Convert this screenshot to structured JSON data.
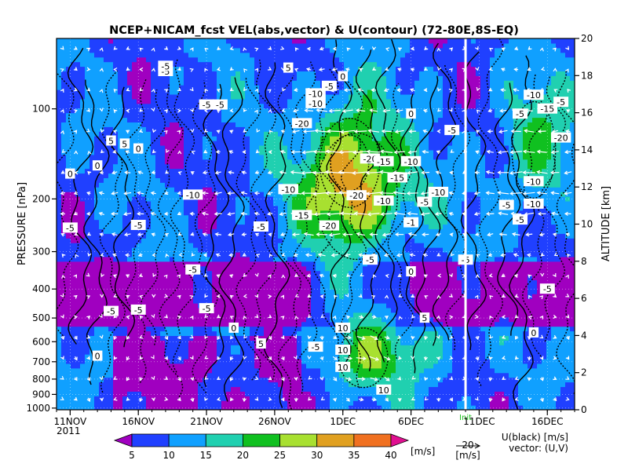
{
  "chart_data": {
    "type": "heatmap",
    "title": "NCEP+NICAM_fcst VEL(abs,vector) & U(contour)   (72-80E,8S-EQ)",
    "ylabel": "PRESSURE [nPa]",
    "y2label": "ALTITUDE [km]",
    "xlim": [
      "2011-11-10",
      "2011-12-18"
    ],
    "ylim_pressure": [
      1000,
      60
    ],
    "y2lim_altitude": [
      0,
      20
    ],
    "x_ticks": [
      {
        "date": "2011-11-11",
        "label": "11NOV"
      },
      {
        "date": "2011-11-16",
        "label": "16NOV"
      },
      {
        "date": "2011-11-21",
        "label": "21NOV"
      },
      {
        "date": "2011-11-26",
        "label": "26NOV"
      },
      {
        "date": "2011-12-01",
        "label": "1DEC"
      },
      {
        "date": "2011-12-06",
        "label": "6DEC"
      },
      {
        "date": "2011-12-11",
        "label": "11DEC"
      },
      {
        "date": "2011-12-16",
        "label": "16DEC"
      }
    ],
    "x_year_label": "2011",
    "y_ticks_pressure": [
      100,
      200,
      300,
      400,
      500,
      600,
      700,
      800,
      900,
      1000
    ],
    "y_ticks_altitude": [
      0,
      2,
      4,
      6,
      8,
      10,
      12,
      14,
      16,
      18,
      20
    ],
    "init_date": "2011-12-10",
    "init_label": "Init",
    "grid": true,
    "colorbar": {
      "levels": [
        5,
        10,
        15,
        20,
        25,
        30,
        35,
        40
      ],
      "colors": [
        "#a000c0",
        "#2040ff",
        "#10a0ff",
        "#20d0b0",
        "#10c020",
        "#a8e030",
        "#e0a020",
        "#f07020",
        "#e01090"
      ],
      "unit": "[m/s]"
    },
    "vector_reference": {
      "value": "20",
      "unit": "[m/s]"
    },
    "legend_note_1": "U(black) [m/s]",
    "legend_note_2": "vector: (U,V)",
    "contour_labels": [
      {
        "date": "2011-11-18",
        "p": 75,
        "text": "-5"
      },
      {
        "date": "2011-11-21",
        "p": 97,
        "text": "-5"
      },
      {
        "date": "2011-11-22",
        "p": 97,
        "text": "-5"
      },
      {
        "date": "2011-11-14",
        "p": 128,
        "text": "5"
      },
      {
        "date": "2011-11-15",
        "p": 131,
        "text": "5"
      },
      {
        "date": "2011-11-16",
        "p": 136,
        "text": "0"
      },
      {
        "date": "2011-11-13",
        "p": 155,
        "text": "0"
      },
      {
        "date": "2011-11-11",
        "p": 165,
        "text": "0"
      },
      {
        "date": "2011-11-27",
        "p": 73,
        "text": "5"
      },
      {
        "date": "2011-12-01",
        "p": 78,
        "text": "0"
      },
      {
        "date": "2011-11-30",
        "p": 84,
        "text": "-5"
      },
      {
        "date": "2011-11-29",
        "p": 89,
        "text": "-10"
      },
      {
        "date": "2011-11-29",
        "p": 96,
        "text": "-10"
      },
      {
        "date": "2011-11-28",
        "p": 112,
        "text": "-20"
      },
      {
        "date": "2011-12-03",
        "p": 147,
        "text": "-20"
      },
      {
        "date": "2011-12-04",
        "p": 150,
        "text": "-15"
      },
      {
        "date": "2011-12-06",
        "p": 150,
        "text": "-10"
      },
      {
        "date": "2011-12-05",
        "p": 170,
        "text": "-15"
      },
      {
        "date": "2011-11-27",
        "p": 186,
        "text": "-10"
      },
      {
        "date": "2011-12-02",
        "p": 195,
        "text": "-20"
      },
      {
        "date": "2011-12-04",
        "p": 203,
        "text": "-10"
      },
      {
        "date": "2011-11-28",
        "p": 227,
        "text": "-15"
      },
      {
        "date": "2011-11-30",
        "p": 246,
        "text": "-20"
      },
      {
        "date": "2011-12-06",
        "p": 240,
        "text": "-1"
      },
      {
        "date": "2011-12-07",
        "p": 205,
        "text": "-5"
      },
      {
        "date": "2011-12-08",
        "p": 190,
        "text": "-10"
      },
      {
        "date": "2011-12-06",
        "p": 104,
        "text": "0"
      },
      {
        "date": "2011-12-09",
        "p": 118,
        "text": "-5"
      },
      {
        "date": "2011-11-20",
        "p": 194,
        "text": "-10"
      },
      {
        "date": "2011-11-11",
        "p": 250,
        "text": "-5"
      },
      {
        "date": "2011-11-16",
        "p": 245,
        "text": "-5"
      },
      {
        "date": "2011-11-25",
        "p": 248,
        "text": "-5"
      },
      {
        "date": "2011-12-03",
        "p": 320,
        "text": "-5"
      },
      {
        "date": "2011-12-06",
        "p": 350,
        "text": "0"
      },
      {
        "date": "2011-11-20",
        "p": 345,
        "text": "-5"
      },
      {
        "date": "2011-11-14",
        "p": 475,
        "text": "-5"
      },
      {
        "date": "2011-11-16",
        "p": 470,
        "text": "-5"
      },
      {
        "date": "2011-11-21",
        "p": 465,
        "text": "-5"
      },
      {
        "date": "2011-11-23",
        "p": 540,
        "text": "0"
      },
      {
        "date": "2011-11-25",
        "p": 610,
        "text": "5"
      },
      {
        "date": "2011-11-29",
        "p": 625,
        "text": "-5"
      },
      {
        "date": "2011-12-01",
        "p": 540,
        "text": "10"
      },
      {
        "date": "2011-12-01",
        "p": 640,
        "text": "10"
      },
      {
        "date": "2011-12-01",
        "p": 730,
        "text": "10"
      },
      {
        "date": "2011-12-04",
        "p": 870,
        "text": "10"
      },
      {
        "date": "2011-11-13",
        "p": 670,
        "text": "0"
      },
      {
        "date": "2011-12-14",
        "p": 104,
        "text": "-5"
      },
      {
        "date": "2011-12-15",
        "p": 90,
        "text": "-10"
      },
      {
        "date": "2011-12-16",
        "p": 100,
        "text": "-15"
      },
      {
        "date": "2011-12-17",
        "p": 95,
        "text": "-5"
      },
      {
        "date": "2011-12-17",
        "p": 125,
        "text": "-20"
      },
      {
        "date": "2011-12-15",
        "p": 175,
        "text": "-10"
      },
      {
        "date": "2011-12-15",
        "p": 208,
        "text": "-10"
      },
      {
        "date": "2011-12-13",
        "p": 210,
        "text": "-5"
      },
      {
        "date": "2011-12-14",
        "p": 235,
        "text": "-5"
      },
      {
        "date": "2011-12-10",
        "p": 320,
        "text": "-5"
      },
      {
        "date": "2011-12-16",
        "p": 400,
        "text": "-5"
      },
      {
        "date": "2011-12-15",
        "p": 560,
        "text": "0"
      },
      {
        "date": "2011-12-07",
        "p": 500,
        "text": "5"
      },
      {
        "date": "2011-11-18",
        "p": 72,
        "text": "-5"
      }
    ]
  }
}
